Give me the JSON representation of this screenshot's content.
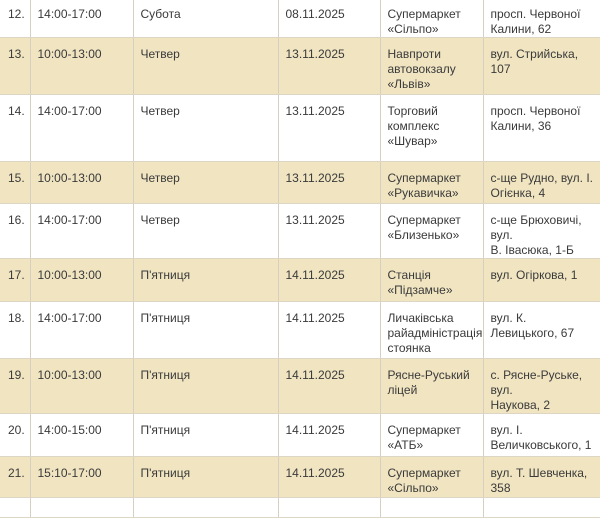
{
  "table": {
    "rows": [
      {
        "num": "12.",
        "time": "14:00-17:00",
        "day": "Субота",
        "date": "08.11.2025",
        "place": [
          "Супермаркет",
          "«Сільпо»"
        ],
        "address": [
          "просп. Червоної",
          "Калини, 62"
        ]
      },
      {
        "num": "13.",
        "time": "10:00-13:00",
        "day": "Четвер",
        "date": "13.11.2025",
        "place": [
          "Навпроти",
          "автовокзалу",
          "«Львів»"
        ],
        "address": [
          "вул. Стрийська, 107"
        ]
      },
      {
        "num": "14.",
        "time": "14:00-17:00",
        "day": "Четвер",
        "date": "13.11.2025",
        "place": [
          "Торговий",
          "комплекс",
          "«Шувар»"
        ],
        "address": [
          "просп. Червоної",
          "Калини, 36"
        ]
      },
      {
        "num": "15.",
        "time": "10:00-13:00",
        "day": "Четвер",
        "date": "13.11.2025",
        "place": [
          "Супермаркет",
          "«Рукавичка»"
        ],
        "address": [
          "с-ще Рудно, вул. І.",
          "Огієнка, 4"
        ]
      },
      {
        "num": "16.",
        "time": "14:00-17:00",
        "day": "Четвер",
        "date": "13.11.2025",
        "place": [
          "Супермаркет",
          "«Близенько»"
        ],
        "address": [
          "с-ще Брюховичі, вул.",
          "В. Івасюка, 1-Б"
        ]
      },
      {
        "num": "17.",
        "time": "10:00-13:00",
        "day": "П'ятниця",
        "date": "14.11.2025",
        "place": [
          "Станція",
          "«Підзамче»"
        ],
        "address": [
          "вул. Огіркова, 1"
        ]
      },
      {
        "num": "18.",
        "time": "14:00-17:00",
        "day": "П'ятниця",
        "date": "14.11.2025",
        "place": [
          "Личаківська",
          "райадміністрація,",
          "стоянка"
        ],
        "address": [
          "вул. К. Левицького, 67"
        ]
      },
      {
        "num": "19.",
        "time": "10:00-13:00",
        "day": "П'ятниця",
        "date": "14.11.2025",
        "place": [
          "Рясне-Руський",
          "ліцей"
        ],
        "address": [
          "с. Рясне-Руське, вул.",
          "Наукова, 2"
        ]
      },
      {
        "num": "20.",
        "time": "14:00-15:00",
        "day": "П'ятниця",
        "date": "14.11.2025",
        "place": [
          "Супермаркет",
          "«АТБ»"
        ],
        "address": [
          "вул. І.",
          "Величковського, 1"
        ]
      },
      {
        "num": "21.",
        "time": "15:10-17:00",
        "day": "П'ятниця",
        "date": "14.11.2025",
        "place": [
          "Супермаркет",
          "«Сільпо»"
        ],
        "address": [
          "вул. Т. Шевченка, 358"
        ]
      }
    ]
  },
  "colors": {
    "alt_row": "#f0e4c1",
    "row": "#ffffff",
    "border": "#d6d0c2"
  }
}
